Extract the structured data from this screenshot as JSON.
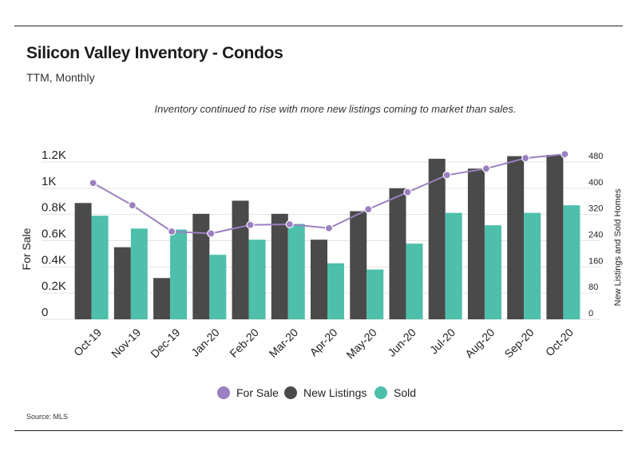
{
  "header": {
    "title": "Silicon Valley Inventory - Condos",
    "subtitle": "TTM, Monthly",
    "annotation": "Inventory continued to rise with more new listings coming to market than sales."
  },
  "footer": {
    "source": "Source:  MLS"
  },
  "chart_data": {
    "type": "bar",
    "categories": [
      "Oct-19",
      "Nov-19",
      "Dec-19",
      "Jan-20",
      "Feb-20",
      "Mar-20",
      "Apr-20",
      "May-20",
      "Jun-20",
      "Jul-20",
      "Aug-20",
      "Sep-20",
      "Oct-20"
    ],
    "series": [
      {
        "name": "New Listings",
        "type": "bar",
        "axis": "right",
        "color": "#4a4a4a",
        "values": [
          355,
          220,
          126,
          322,
          362,
          322,
          243,
          330,
          400,
          490,
          460,
          498,
          502
        ]
      },
      {
        "name": "Sold",
        "type": "bar",
        "axis": "right",
        "color": "#4dbfaa",
        "values": [
          316,
          277,
          274,
          197,
          243,
          291,
          171,
          152,
          231,
          325,
          287,
          325,
          348
        ]
      },
      {
        "name": "For Sale",
        "type": "line",
        "axis": "left",
        "color": "#9b7fc0",
        "values": [
          1040,
          870,
          670,
          655,
          720,
          725,
          695,
          840,
          970,
          1100,
          1150,
          1230,
          1260
        ]
      }
    ],
    "y_left": {
      "label": "For Sale",
      "ticks": [
        "0",
        "0.2K",
        "0.4K",
        "0.6K",
        "0.8K",
        "1K",
        "1.2K"
      ],
      "range": [
        0,
        1200
      ]
    },
    "y_right": {
      "label": "New Listings and Sold Homes",
      "ticks": [
        "0",
        "80",
        "160",
        "240",
        "320",
        "400",
        "480"
      ],
      "range": [
        0,
        480
      ]
    },
    "legend": {
      "placement": "bottom-center",
      "items": [
        "For Sale",
        "New Listings",
        "Sold"
      ]
    },
    "grid": true
  }
}
